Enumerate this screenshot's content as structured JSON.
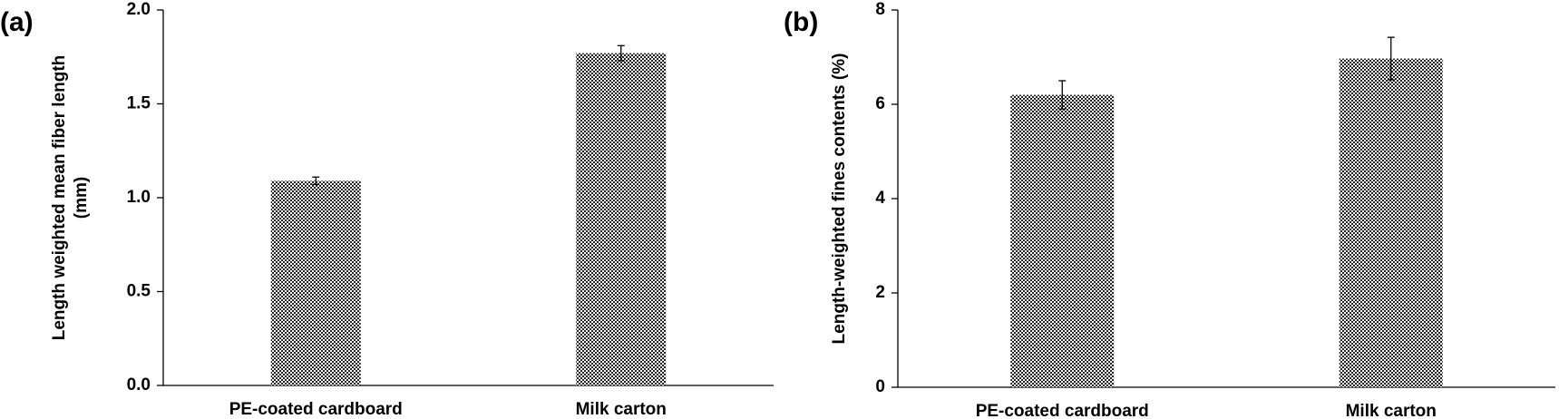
{
  "chart_data": [
    {
      "type": "bar",
      "panel": "(a)",
      "ylabel": [
        "Length weighted mean fiber length",
        "(mm)"
      ],
      "categories": [
        "PE-coated cardboard",
        "Milk carton"
      ],
      "values": [
        1.09,
        1.77
      ],
      "errors": [
        0.02,
        0.04
      ],
      "ylim": [
        0,
        2
      ],
      "yticks": [
        {
          "value": 0,
          "label": "0.0"
        },
        0.5,
        {
          "value": 1,
          "label": "1.0"
        },
        1.5,
        {
          "value": 2,
          "label": "2.0"
        }
      ]
    },
    {
      "type": "bar",
      "panel": "(b)",
      "ylabel": [
        "Length-weighted fines contents (%)"
      ],
      "categories": [
        "PE-coated cardboard",
        "Milk carton"
      ],
      "values": [
        6.2,
        6.97
      ],
      "errors": [
        0.3,
        0.45
      ],
      "ylim": [
        0,
        8
      ],
      "yticks": [
        0,
        2,
        4,
        6,
        8
      ]
    }
  ]
}
